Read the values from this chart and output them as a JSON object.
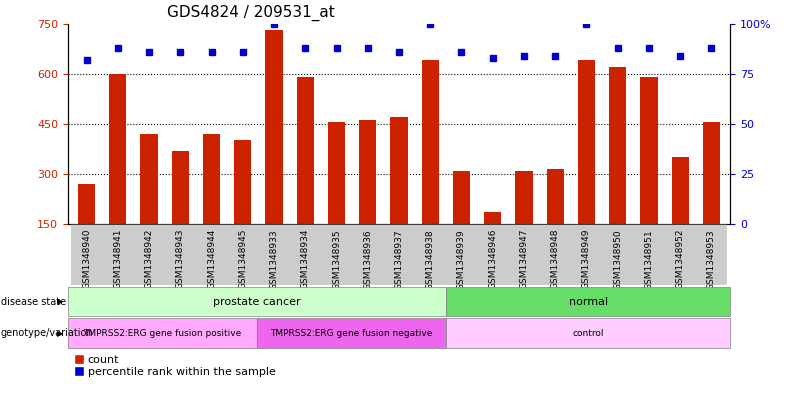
{
  "title": "GDS4824 / 209531_at",
  "samples": [
    "GSM1348940",
    "GSM1348941",
    "GSM1348942",
    "GSM1348943",
    "GSM1348944",
    "GSM1348945",
    "GSM1348933",
    "GSM1348934",
    "GSM1348935",
    "GSM1348936",
    "GSM1348937",
    "GSM1348938",
    "GSM1348939",
    "GSM1348946",
    "GSM1348947",
    "GSM1348948",
    "GSM1348949",
    "GSM1348950",
    "GSM1348951",
    "GSM1348952",
    "GSM1348953"
  ],
  "counts": [
    270,
    600,
    420,
    370,
    420,
    400,
    730,
    590,
    455,
    460,
    470,
    640,
    310,
    185,
    310,
    315,
    640,
    620,
    590,
    350,
    455
  ],
  "percentile_ranks": [
    82,
    88,
    86,
    86,
    86,
    86,
    100,
    88,
    88,
    88,
    86,
    100,
    86,
    83,
    84,
    84,
    100,
    88,
    88,
    84,
    88
  ],
  "bar_color": "#cc2200",
  "dot_color": "#0000cc",
  "ylim_left": [
    150,
    750
  ],
  "ylim_right": [
    0,
    100
  ],
  "yticks_left": [
    150,
    300,
    450,
    600,
    750
  ],
  "yticks_right": [
    0,
    25,
    50,
    75,
    100
  ],
  "disease_state_groups": [
    {
      "label": "prostate cancer",
      "start": 0,
      "end": 12,
      "color": "#ccffcc"
    },
    {
      "label": "normal",
      "start": 12,
      "end": 21,
      "color": "#66dd66"
    }
  ],
  "genotype_groups": [
    {
      "label": "TMPRSS2:ERG gene fusion positive",
      "start": 0,
      "end": 6,
      "color": "#ffaaff"
    },
    {
      "label": "TMPRSS2:ERG gene fusion negative",
      "start": 6,
      "end": 12,
      "color": "#ee66ee"
    },
    {
      "label": "control",
      "start": 12,
      "end": 21,
      "color": "#ffccff"
    }
  ],
  "legend_items": [
    {
      "label": "count",
      "color": "#cc2200"
    },
    {
      "label": "percentile rank within the sample",
      "color": "#0000cc"
    }
  ],
  "title_fontsize": 11,
  "axis_label_color_left": "#cc2200",
  "axis_label_color_right": "#0000cc",
  "tick_label_gray": "#888888",
  "sample_label_bg": "#cccccc"
}
